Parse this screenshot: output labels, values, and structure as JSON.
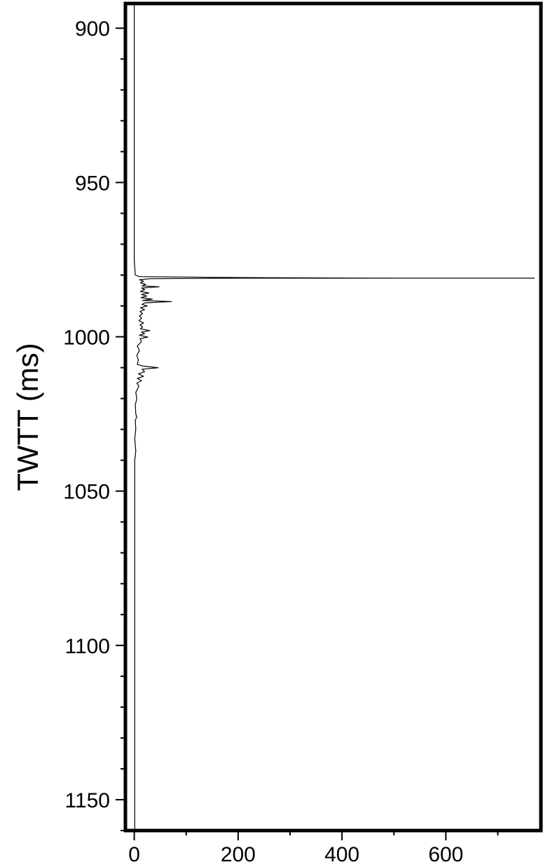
{
  "chart_data": {
    "type": "line",
    "title": "",
    "xlabel": "",
    "ylabel": "TWTT (ms)",
    "xlim": [
      -17,
      783
    ],
    "ylim": [
      892,
      1160
    ],
    "y_inverted": true,
    "x_ticks": [
      0,
      200,
      400,
      600
    ],
    "x_tick_labels": [
      "0",
      "200",
      "400",
      "600"
    ],
    "y_ticks": [
      900,
      950,
      1000,
      1050,
      1100,
      1150
    ],
    "y_tick_labels": [
      "900",
      "950",
      "1000",
      "1050",
      "1100",
      "1150"
    ],
    "grid": false,
    "line_color": "#000000",
    "series": [
      {
        "points": [
          [
            0,
            892
          ],
          [
            0,
            975
          ],
          [
            2,
            980
          ],
          [
            10,
            980.5
          ],
          [
            200,
            980.8
          ],
          [
            500,
            981
          ],
          [
            770,
            981
          ],
          [
            500,
            981
          ],
          [
            200,
            981
          ],
          [
            30,
            981.2
          ],
          [
            10,
            981.5
          ],
          [
            18,
            982
          ],
          [
            12,
            982.5
          ],
          [
            22,
            983
          ],
          [
            15,
            983.5
          ],
          [
            48,
            983.8
          ],
          [
            14,
            984.2
          ],
          [
            20,
            984.7
          ],
          [
            12,
            985.3
          ],
          [
            28,
            985.8
          ],
          [
            14,
            986.3
          ],
          [
            24,
            986.8
          ],
          [
            13,
            987.3
          ],
          [
            35,
            987.8
          ],
          [
            16,
            988.2
          ],
          [
            72,
            988.6
          ],
          [
            20,
            989
          ],
          [
            15,
            989.5
          ],
          [
            25,
            990
          ],
          [
            12,
            990.6
          ],
          [
            20,
            991.2
          ],
          [
            11,
            991.8
          ],
          [
            16,
            992.5
          ],
          [
            10,
            993.2
          ],
          [
            14,
            994
          ],
          [
            9,
            994.8
          ],
          [
            18,
            995.5
          ],
          [
            11,
            996.2
          ],
          [
            16,
            996.8
          ],
          [
            12,
            997.4
          ],
          [
            30,
            998
          ],
          [
            14,
            998.5
          ],
          [
            20,
            999
          ],
          [
            10,
            999.5
          ],
          [
            26,
            1000.1
          ],
          [
            11,
            1000.6
          ],
          [
            14,
            1001.5
          ],
          [
            6,
            1003
          ],
          [
            10,
            1004.5
          ],
          [
            5,
            1006
          ],
          [
            8,
            1007.5
          ],
          [
            6,
            1009
          ],
          [
            18,
            1009.5
          ],
          [
            46,
            1010
          ],
          [
            15,
            1010.5
          ],
          [
            20,
            1011.3
          ],
          [
            8,
            1012
          ],
          [
            18,
            1012.8
          ],
          [
            6,
            1013.5
          ],
          [
            14,
            1014.2
          ],
          [
            5,
            1015
          ],
          [
            9,
            1016
          ],
          [
            3,
            1018
          ],
          [
            5,
            1020
          ],
          [
            2,
            1022
          ],
          [
            3,
            1025
          ],
          [
            5,
            1026
          ],
          [
            2,
            1027
          ],
          [
            3,
            1030
          ],
          [
            1,
            1033
          ],
          [
            3,
            1037
          ],
          [
            1,
            1040
          ],
          [
            1,
            1050
          ],
          [
            1,
            1100
          ],
          [
            1,
            1160
          ]
        ]
      }
    ]
  }
}
